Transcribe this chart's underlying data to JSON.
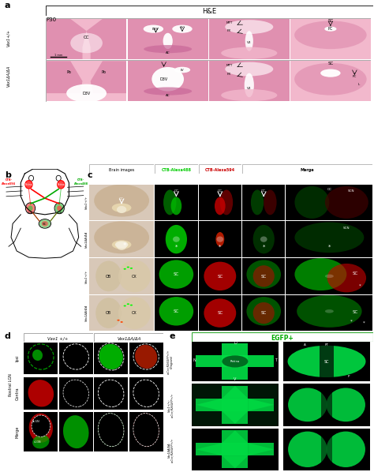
{
  "title": "H&E",
  "panel_a_label": "a",
  "panel_b_label": "b",
  "panel_c_label": "c",
  "panel_d_label": "d",
  "panel_e_label": "e",
  "p30_label": "P30",
  "vax1_wt_label": "Vax1+/+",
  "vax1_mut_label": "Vax1ΔA/ΔA",
  "hne_pink_light": "#f2b8cc",
  "hne_pink_mid": "#e090b0",
  "hne_pink_dark": "#c86898",
  "hne_white": "#fdf0f5",
  "bg_color": "#ffffff",
  "brain_bg": "#d8c8b8",
  "ctb488_color": "#00dd00",
  "ctb594_color": "#dd0000",
  "egfp_green": "#00dd44",
  "lgn_green": "#00cc00",
  "lgn_red": "#cc0000",
  "black": "#000000",
  "brain_image_labels": [
    "Brain images",
    "CTB-Alexa488",
    "CTB-Alexa594",
    "Merge"
  ],
  "label_d_wt": "Vax1 +/+",
  "label_d_mut": "Vax1ΔA/ΔA",
  "label_d_rows": [
    "Ipsi",
    "Contra",
    "Merge"
  ],
  "label_d_sub": "Rostral LGN",
  "label_e_header": "EGFP+",
  "label_e_rows": [
    "α-Cre;R26GFP+/+\n(diagram)",
    "Vax1+/+;\nα-Cre;R26GFP+/+",
    "Vax1ΔA/ΔA;\nα-Cre;R26GFP+/+"
  ],
  "oc_label": "OC",
  "scn_label": "SCN",
  "sc_label": "SC",
  "ob_label": "OB",
  "cx_label": "CX"
}
